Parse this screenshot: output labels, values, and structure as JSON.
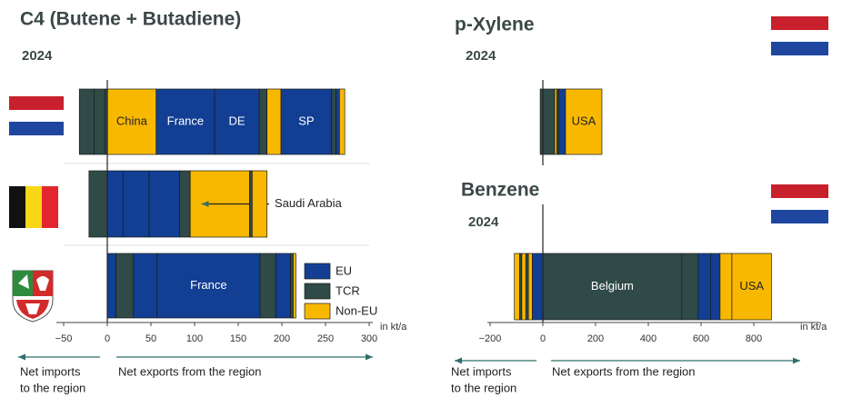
{
  "chart_data": [
    {
      "type": "stacked-barh",
      "title": "C4 (Butene + Butadiene)",
      "subtitle": "2024",
      "xlim": [
        -50,
        300
      ],
      "xticks": [
        {
          "value": -50,
          "label": "−50"
        },
        0,
        50,
        100,
        150,
        200,
        250,
        300
      ],
      "x_unit": "in kt/a",
      "imports_label": [
        "Net imports",
        "to the region"
      ],
      "exports_label": "Net exports from the region",
      "legend": "inside-right",
      "series": [
        {
          "name": "EU",
          "color": "#123f93"
        },
        {
          "name": "TCR",
          "color": "#2f4a47"
        },
        {
          "name": "Non-EU",
          "color": "#f8b800"
        }
      ],
      "rows": [
        {
          "imports": [
            {
              "value": 3,
              "color": "#2f4a47"
            },
            {
              "value": 12,
              "color": "#2f4a47"
            },
            {
              "value": 17,
              "color": "#2f4a47"
            }
          ],
          "exports": [
            {
              "value": 56,
              "color": "#f8b800",
              "label": "China"
            },
            {
              "value": 67,
              "color": "#123f93",
              "label": "France"
            },
            {
              "value": 51,
              "color": "#123f93",
              "label": "DE"
            },
            {
              "value": 9,
              "color": "#2f4a47"
            },
            {
              "value": 16,
              "color": "#f8b800"
            },
            {
              "value": 58,
              "color": "#123f93",
              "label": "SP"
            },
            {
              "value": 5,
              "color": "#2f4a47"
            },
            {
              "value": 4,
              "color": "#123f93"
            },
            {
              "value": 6,
              "color": "#f8b800"
            }
          ]
        },
        {
          "imports": [
            {
              "value": 21,
              "color": "#2f4a47"
            }
          ],
          "exports": [
            {
              "value": 18,
              "color": "#123f93"
            },
            {
              "value": 30,
              "color": "#123f93"
            },
            {
              "value": 35,
              "color": "#123f93"
            },
            {
              "value": 12,
              "color": "#2f4a47"
            },
            {
              "value": 68,
              "color": "#f8b800",
              "annotation": "Saudi Arabia"
            },
            {
              "value": 3,
              "color": "#2f4a47"
            },
            {
              "value": 17,
              "color": "#f8b800"
            }
          ]
        },
        {
          "imports": [],
          "exports": [
            {
              "value": 10,
              "color": "#123f93"
            },
            {
              "value": 20,
              "color": "#2f4a47"
            },
            {
              "value": 27,
              "color": "#123f93"
            },
            {
              "value": 118,
              "color": "#123f93",
              "label": "France"
            },
            {
              "value": 18,
              "color": "#2f4a47"
            },
            {
              "value": 17,
              "color": "#123f93"
            },
            {
              "value": 3,
              "color": "#2f4a47"
            },
            {
              "value": 3,
              "color": "#f8b800"
            }
          ]
        }
      ]
    },
    {
      "type": "stacked-barh",
      "title": "p-Xylene",
      "subtitle": "2024",
      "xlim": [
        -200,
        1000
      ],
      "rows": [
        {
          "imports": [
            {
              "value": 10,
              "color": "#2f4a47"
            }
          ],
          "exports": [
            {
              "value": 45,
              "color": "#2f4a47"
            },
            {
              "value": 8,
              "color": "#f8b800"
            },
            {
              "value": 8,
              "color": "#2f4a47"
            },
            {
              "value": 25,
              "color": "#123f93"
            },
            {
              "value": 138,
              "color": "#f8b800",
              "label": "USA"
            }
          ]
        }
      ]
    },
    {
      "type": "stacked-barh",
      "title": "Benzene",
      "subtitle": "2024",
      "xlim": [
        -200,
        1000
      ],
      "xticks": [
        {
          "value": -200,
          "label": "−200"
        },
        0,
        200,
        400,
        600,
        800
      ],
      "x_unit": "in kt/a",
      "imports_label": [
        "Net imports",
        "to the region"
      ],
      "exports_label": "Net exports from the region",
      "rows": [
        {
          "imports": [
            {
              "value": 40,
              "color": "#123f93"
            },
            {
              "value": 15,
              "color": "#f8b800"
            },
            {
              "value": 10,
              "color": "#2f4a47"
            },
            {
              "value": 15,
              "color": "#f8b800"
            },
            {
              "value": 8,
              "color": "#2f4a47"
            },
            {
              "value": 20,
              "color": "#f8b800"
            }
          ],
          "exports": [
            {
              "value": 527,
              "color": "#2f4a47",
              "label": "Belgium"
            },
            {
              "value": 62,
              "color": "#2f4a47"
            },
            {
              "value": 48,
              "color": "#123f93"
            },
            {
              "value": 35,
              "color": "#123f93"
            },
            {
              "value": 45,
              "color": "#f8b800"
            },
            {
              "value": 150,
              "color": "#f8b800",
              "label": "USA"
            }
          ]
        }
      ]
    }
  ]
}
